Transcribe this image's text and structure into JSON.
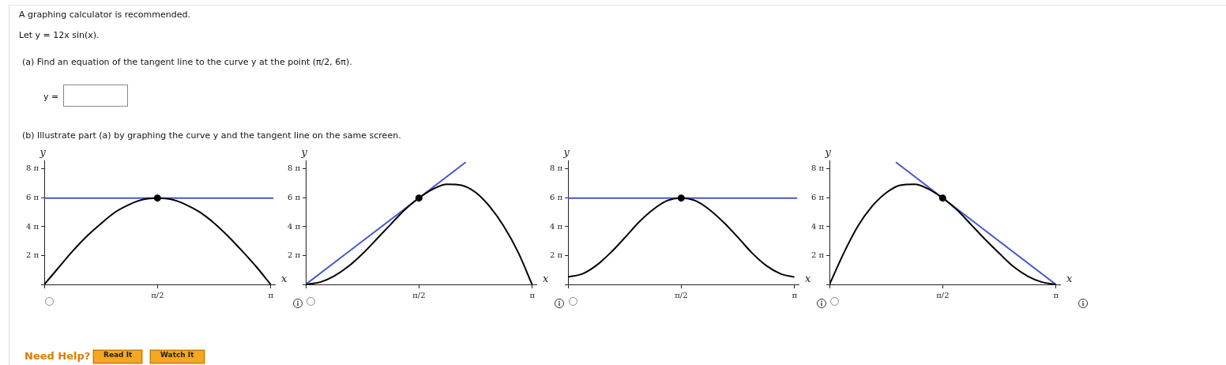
{
  "chart_data": [
    {
      "type": "other",
      "title": "A graphing calculator is recommended.",
      "annotations": [
        "Let y = 12x sin(x).",
        "(a) Find an equation of the tangent line to the curve y at the point (π/2, 6π).",
        "y =",
        "(b) Illustrate part (a) by graphing the curve y and the tangent line on the same screen.",
        "Need Help?",
        "Read It",
        "Watch It"
      ]
    },
    {
      "type": "line",
      "xlabel": "x",
      "ylabel": "y",
      "xlim": [
        0,
        3.2
      ],
      "ylim": [
        0,
        27
      ],
      "xticks": [
        {
          "value": 0,
          "label": null
        },
        {
          "value": 1.571,
          "label": "π/2"
        },
        {
          "value": 3.142,
          "label": "π"
        }
      ],
      "yticks": [
        {
          "value": 0,
          "label": null
        },
        {
          "value": 6.283,
          "label": "2 π"
        },
        {
          "value": 12.566,
          "label": "4 π"
        },
        {
          "value": 18.85,
          "label": "6 π"
        },
        {
          "value": 25.133,
          "label": "8 π"
        }
      ],
      "series": [
        {
          "type": "line",
          "color": "#000000",
          "x": [
            0,
            0.2,
            0.39,
            0.59,
            0.79,
            0.98,
            1.18,
            1.37,
            1.57,
            1.77,
            1.96,
            2.16,
            2.36,
            2.55,
            2.75,
            2.95,
            3.14
          ],
          "values": [
            0,
            3.7,
            7.2,
            10.5,
            13.3,
            15.7,
            17.4,
            18.5,
            18.8,
            18.5,
            17.4,
            15.7,
            13.3,
            10.5,
            7.2,
            3.7,
            0
          ]
        },
        {
          "type": "line",
          "color": "#4458c8",
          "x": [
            0,
            3.18
          ],
          "values": [
            18.8,
            18.8
          ]
        },
        {
          "type": "scatter",
          "color": "#000000",
          "marker": "circle",
          "x": [
            1.57
          ],
          "values": [
            18.8
          ]
        }
      ]
    },
    {
      "type": "line",
      "xlabel": "x",
      "ylabel": "y",
      "xlim": [
        0,
        3.2
      ],
      "ylim": [
        0,
        27
      ],
      "xticks": [
        {
          "value": 0,
          "label": null
        },
        {
          "value": 1.571,
          "label": "π/2"
        },
        {
          "value": 3.142,
          "label": "π"
        }
      ],
      "yticks": [
        {
          "value": 0,
          "label": null
        },
        {
          "value": 6.283,
          "label": "2 π"
        },
        {
          "value": 12.566,
          "label": "4 π"
        },
        {
          "value": 18.85,
          "label": "6 π"
        },
        {
          "value": 25.133,
          "label": "8 π"
        }
      ],
      "series": [
        {
          "type": "line",
          "color": "#000000",
          "x": [
            0,
            0.2,
            0.39,
            0.59,
            0.79,
            0.98,
            1.18,
            1.37,
            1.57,
            1.77,
            1.96,
            2.16,
            2.36,
            2.55,
            2.75,
            2.95,
            3.14
          ],
          "values": [
            0,
            0.5,
            1.8,
            3.9,
            6.7,
            9.8,
            13.1,
            16.2,
            18.8,
            20.8,
            21.8,
            21.6,
            20,
            17,
            12.6,
            6.9,
            0
          ]
        },
        {
          "type": "line",
          "color": "#4458c8",
          "x": [
            0,
            2.22
          ],
          "values": [
            0,
            26.6
          ]
        },
        {
          "type": "scatter",
          "color": "#000000",
          "marker": "circle",
          "x": [
            1.57
          ],
          "values": [
            18.8
          ]
        }
      ]
    },
    {
      "type": "line",
      "xlabel": "x",
      "ylabel": "y",
      "xlim": [
        0,
        3.2
      ],
      "ylim": [
        0,
        27
      ],
      "xticks": [
        {
          "value": 0,
          "label": null
        },
        {
          "value": 1.571,
          "label": "π/2"
        },
        {
          "value": 3.142,
          "label": "π"
        }
      ],
      "yticks": [
        {
          "value": 0,
          "label": null
        },
        {
          "value": 6.283,
          "label": "2 π"
        },
        {
          "value": 12.566,
          "label": "4 π"
        },
        {
          "value": 18.85,
          "label": "6 π"
        },
        {
          "value": 25.133,
          "label": "8 π"
        }
      ],
      "series": [
        {
          "type": "line",
          "color": "#000000",
          "x": [
            0,
            0.2,
            0.39,
            0.59,
            0.79,
            0.98,
            1.18,
            1.37,
            1.57,
            1.77,
            1.96,
            2.16,
            2.36,
            2.55,
            2.75,
            2.95,
            3.14
          ],
          "values": [
            1.6,
            2.3,
            4.1,
            6.9,
            10.2,
            13.5,
            16.3,
            18.2,
            18.8,
            18.2,
            16.3,
            13.5,
            10.2,
            6.9,
            4.1,
            2.3,
            1.6
          ]
        },
        {
          "type": "line",
          "color": "#4458c8",
          "x": [
            0,
            3.18
          ],
          "values": [
            18.8,
            18.8
          ]
        },
        {
          "type": "scatter",
          "color": "#000000",
          "marker": "circle",
          "x": [
            1.57
          ],
          "values": [
            18.8
          ]
        }
      ]
    },
    {
      "type": "line",
      "xlabel": "x",
      "ylabel": "y",
      "xlim": [
        0,
        3.2
      ],
      "ylim": [
        0,
        27
      ],
      "xticks": [
        {
          "value": 0,
          "label": null
        },
        {
          "value": 1.571,
          "label": "π/2"
        },
        {
          "value": 3.142,
          "label": "π"
        }
      ],
      "yticks": [
        {
          "value": 0,
          "label": null
        },
        {
          "value": 6.283,
          "label": "2 π"
        },
        {
          "value": 12.566,
          "label": "4 π"
        },
        {
          "value": 18.85,
          "label": "6 π"
        },
        {
          "value": 25.133,
          "label": "8 π"
        }
      ],
      "series": [
        {
          "type": "line",
          "color": "#000000",
          "x": [
            0,
            0.2,
            0.39,
            0.59,
            0.79,
            0.98,
            1.18,
            1.37,
            1.57,
            1.77,
            1.96,
            2.16,
            2.36,
            2.55,
            2.75,
            2.95,
            3.14
          ],
          "values": [
            0,
            6.9,
            12.6,
            17,
            20,
            21.6,
            21.8,
            20.8,
            18.8,
            16.2,
            13.1,
            9.8,
            6.7,
            3.9,
            1.8,
            0.5,
            0
          ]
        },
        {
          "type": "line",
          "color": "#4458c8",
          "x": [
            0.92,
            3.14
          ],
          "values": [
            26.6,
            0
          ]
        },
        {
          "type": "scatter",
          "color": "#000000",
          "marker": "circle",
          "x": [
            1.57
          ],
          "values": [
            18.8
          ]
        }
      ]
    }
  ]
}
